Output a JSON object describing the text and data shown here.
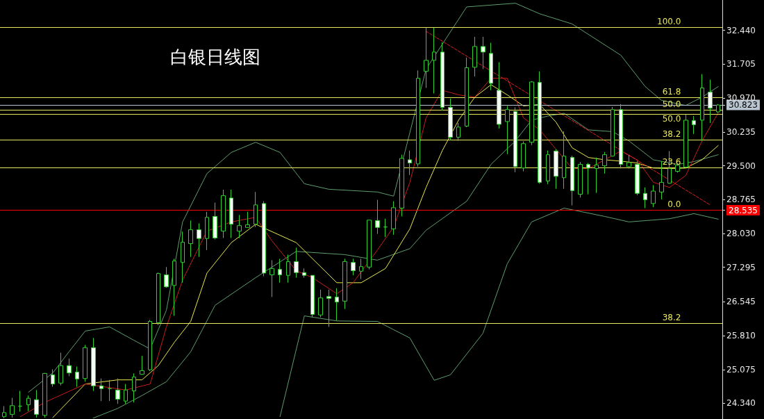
{
  "chart_data": {
    "type": "candlestick",
    "title": "白银日线图",
    "categories": [
      null,
      null,
      null,
      null,
      null,
      null,
      null,
      null,
      null,
      null,
      null,
      null,
      null,
      null,
      null,
      null,
      null,
      null,
      null,
      null,
      null,
      null,
      null,
      null,
      null,
      null,
      null,
      null,
      null,
      null,
      null,
      null,
      null,
      null,
      null,
      null,
      null,
      null,
      null,
      null,
      null,
      null,
      null,
      null,
      null,
      null,
      null,
      null,
      null,
      null,
      null,
      null,
      null,
      null,
      null,
      null,
      null,
      null,
      null,
      null,
      null,
      null,
      null,
      null,
      null,
      null,
      null,
      null,
      null,
      null,
      null,
      null,
      null,
      null,
      null,
      null,
      null,
      null,
      null,
      null,
      null,
      null,
      null,
      null,
      null,
      null,
      null,
      null,
      null
    ],
    "color": "#2fd02f",
    "ohlc": [
      [
        24.05,
        24.28,
        24.02,
        24.14
      ],
      [
        24.1,
        24.46,
        24.03,
        24.29
      ],
      [
        24.28,
        24.61,
        24.16,
        24.28
      ],
      [
        24.31,
        24.51,
        24.17,
        24.45
      ],
      [
        24.42,
        24.63,
        24.03,
        24.1
      ],
      [
        24.08,
        25.0,
        24.03,
        24.99
      ],
      [
        24.96,
        25.08,
        24.7,
        24.76
      ],
      [
        24.78,
        25.44,
        24.73,
        25.16
      ],
      [
        25.16,
        25.31,
        24.93,
        25.0
      ],
      [
        25.02,
        25.14,
        24.7,
        24.87
      ],
      [
        24.88,
        25.61,
        24.81,
        25.55
      ],
      [
        25.55,
        25.76,
        24.61,
        24.72
      ],
      [
        24.72,
        24.88,
        24.39,
        24.66
      ],
      [
        24.66,
        24.85,
        24.39,
        24.66
      ],
      [
        24.63,
        24.88,
        24.33,
        24.43
      ],
      [
        24.39,
        24.76,
        24.33,
        24.63
      ],
      [
        24.61,
        24.99,
        24.36,
        24.91
      ],
      [
        24.97,
        25.37,
        24.96,
        25.05
      ],
      [
        25.07,
        26.15,
        25.04,
        26.12
      ],
      [
        26.09,
        27.18,
        26.04,
        27.16
      ],
      [
        27.13,
        27.3,
        26.85,
        26.87
      ],
      [
        26.9,
        27.48,
        26.24,
        27.43
      ],
      [
        27.4,
        28.07,
        26.96,
        27.84
      ],
      [
        27.81,
        28.31,
        27.52,
        28.11
      ],
      [
        28.11,
        28.25,
        27.52,
        27.92
      ],
      [
        27.92,
        28.5,
        27.67,
        28.38
      ],
      [
        28.4,
        28.7,
        27.9,
        27.93
      ],
      [
        28.08,
        28.98,
        27.93,
        28.85
      ],
      [
        28.8,
        28.98,
        27.93,
        28.23
      ],
      [
        28.08,
        28.43,
        27.93,
        28.2
      ],
      [
        28.16,
        28.5,
        28.15,
        28.22
      ],
      [
        28.23,
        28.93,
        28.17,
        28.65
      ],
      [
        28.68,
        28.73,
        27.1,
        27.17
      ],
      [
        27.13,
        27.45,
        26.65,
        27.27
      ],
      [
        27.25,
        27.48,
        26.96,
        27.13
      ],
      [
        27.12,
        27.57,
        26.96,
        27.42
      ],
      [
        27.42,
        27.72,
        27.07,
        27.18
      ],
      [
        27.18,
        27.27,
        27.07,
        27.12
      ],
      [
        27.12,
        27.12,
        26.21,
        26.27
      ],
      [
        26.26,
        26.81,
        26.21,
        26.63
      ],
      [
        26.66,
        26.81,
        26.0,
        26.62
      ],
      [
        26.65,
        26.84,
        26.14,
        26.54
      ],
      [
        26.56,
        27.48,
        26.39,
        27.42
      ],
      [
        27.4,
        27.48,
        27.12,
        27.22
      ],
      [
        27.21,
        27.48,
        27.04,
        27.31
      ],
      [
        27.3,
        28.32,
        27.25,
        28.32
      ],
      [
        28.31,
        28.76,
        28.02,
        28.16
      ],
      [
        28.17,
        28.35,
        27.95,
        28.17
      ],
      [
        28.13,
        28.73,
        28.0,
        28.59
      ],
      [
        28.58,
        29.74,
        28.4,
        29.66
      ],
      [
        29.63,
        29.83,
        29.3,
        29.56
      ],
      [
        29.54,
        31.57,
        29.48,
        31.4
      ],
      [
        31.55,
        32.5,
        31.19,
        31.79
      ],
      [
        31.79,
        32.5,
        31.07,
        31.97
      ],
      [
        31.97,
        32.18,
        30.7,
        30.77
      ],
      [
        30.77,
        30.96,
        30.06,
        30.12
      ],
      [
        30.12,
        30.43,
        30.04,
        30.34
      ],
      [
        30.36,
        31.85,
        30.34,
        31.63
      ],
      [
        31.64,
        32.3,
        31.44,
        32.09
      ],
      [
        32.09,
        32.3,
        31.6,
        31.97
      ],
      [
        31.94,
        32.17,
        31.14,
        31.29
      ],
      [
        31.14,
        31.75,
        30.31,
        30.4
      ],
      [
        30.46,
        30.8,
        29.75,
        30.72
      ],
      [
        30.68,
        30.77,
        29.36,
        29.48
      ],
      [
        29.45,
        30.03,
        29.38,
        29.98
      ],
      [
        30.01,
        31.34,
        29.95,
        31.32
      ],
      [
        31.31,
        31.55,
        29.11,
        29.14
      ],
      [
        29.17,
        29.83,
        29.1,
        29.74
      ],
      [
        29.82,
        29.86,
        29.0,
        29.27
      ],
      [
        29.24,
        30.25,
        29.0,
        29.71
      ],
      [
        29.68,
        29.72,
        28.64,
        28.96
      ],
      [
        28.88,
        29.58,
        28.81,
        29.53
      ],
      [
        29.53,
        29.56,
        28.88,
        29.45
      ],
      [
        29.44,
        29.68,
        28.91,
        29.52
      ],
      [
        29.5,
        29.8,
        29.33,
        29.74
      ],
      [
        29.71,
        30.78,
        29.7,
        30.72
      ],
      [
        30.72,
        30.84,
        29.44,
        29.53
      ],
      [
        29.48,
        29.74,
        29.44,
        29.57
      ],
      [
        29.53,
        29.6,
        28.86,
        28.9
      ],
      [
        28.9,
        29.03,
        28.58,
        28.76
      ],
      [
        28.68,
        29.08,
        28.6,
        28.95
      ],
      [
        28.93,
        29.6,
        28.77,
        29.14
      ],
      [
        29.12,
        29.82,
        29.11,
        29.44
      ],
      [
        29.38,
        29.55,
        29.35,
        29.51
      ],
      [
        29.47,
        30.61,
        29.45,
        30.49
      ],
      [
        30.48,
        30.58,
        30.19,
        30.39
      ],
      [
        30.49,
        31.49,
        30.04,
        31.19
      ],
      [
        31.1,
        31.37,
        30.43,
        30.75
      ],
      [
        30.67,
        30.84,
        30.65,
        30.82
      ]
    ],
    "series": [
      {
        "type": "line",
        "color": "#5e9e6e",
        "values": [
          null,
          null,
          null,
          24.58,
          null,
          null,
          25.0,
          null,
          25.46,
          null,
          25.91,
          null,
          null,
          26.0,
          null,
          null,
          25.71,
          null,
          25.52,
          null,
          26.36,
          null,
          28.28,
          null,
          null,
          29.33,
          null,
          null,
          29.79,
          null,
          null,
          30.01,
          null,
          null,
          29.79,
          null,
          null,
          29.11,
          null,
          null,
          28.99,
          null,
          null,
          null,
          null,
          null,
          28.93,
          null,
          28.84,
          null,
          null,
          null,
          31.6,
          null,
          null,
          null,
          null,
          32.95,
          null,
          null,
          null,
          null,
          null,
          33.03,
          null,
          null,
          32.8,
          null,
          null,
          null,
          32.58,
          null,
          null,
          null,
          null,
          null,
          31.9,
          null,
          null,
          31.22,
          null,
          30.92,
          null,
          null,
          30.81,
          null,
          30.99,
          null,
          31.22
        ]
      },
      {
        "type": "line",
        "color": "#5e9e6e",
        "values": [
          null,
          null,
          null,
          null,
          null,
          null,
          null,
          null,
          null,
          null,
          null,
          24.02,
          null,
          null,
          24.23,
          null,
          null,
          24.51,
          null,
          null,
          24.81,
          null,
          null,
          25.46,
          null,
          null,
          26.47,
          null,
          null,
          null,
          null,
          27.07,
          null,
          null,
          null,
          null,
          27.64,
          null,
          null,
          null,
          null,
          null,
          27.57,
          null,
          null,
          null,
          27.45,
          null,
          null,
          null,
          27.7,
          null,
          28.1,
          null,
          null,
          null,
          null,
          28.73,
          null,
          null,
          29.53,
          null,
          null,
          30.04,
          null,
          30.49,
          null,
          30.58,
          null,
          30.64,
          null,
          null,
          30.28,
          null,
          null,
          30.24,
          null,
          30.04,
          null,
          null,
          29.63,
          null,
          null,
          29.53,
          null,
          29.59,
          null,
          null,
          29.74
        ]
      },
      {
        "type": "line",
        "color": "#5e9e6e",
        "values": [
          null,
          null,
          null,
          null,
          null,
          null,
          null,
          null,
          null,
          null,
          null,
          null,
          null,
          null,
          null,
          null,
          null,
          null,
          null,
          null,
          null,
          null,
          null,
          null,
          null,
          null,
          null,
          null,
          null,
          null,
          null,
          null,
          null,
          null,
          24.05,
          null,
          null,
          26.24,
          null,
          null,
          null,
          26.13,
          null,
          null,
          null,
          null,
          26.12,
          null,
          null,
          null,
          25.76,
          null,
          null,
          24.84,
          null,
          24.96,
          null,
          null,
          null,
          25.86,
          null,
          null,
          27.37,
          null,
          null,
          28.28,
          null,
          null,
          null,
          28.58,
          null,
          null,
          null,
          null,
          28.4,
          null,
          null,
          28.28,
          null,
          null,
          null,
          null,
          28.35,
          null,
          null,
          28.46,
          null,
          null,
          28.34
        ]
      },
      {
        "type": "line",
        "color": "#e8e84a",
        "values": [
          null,
          null,
          null,
          null,
          null,
          null,
          24.03,
          null,
          null,
          null,
          24.76,
          null,
          null,
          null,
          24.85,
          null,
          null,
          24.85,
          null,
          25.16,
          null,
          25.67,
          null,
          26.12,
          null,
          27.17,
          null,
          null,
          27.83,
          null,
          null,
          28.23,
          null,
          null,
          null,
          null,
          27.83,
          null,
          null,
          null,
          null,
          26.96,
          null,
          null,
          26.96,
          null,
          null,
          27.27,
          null,
          null,
          28.13,
          null,
          29.03,
          null,
          29.83,
          null,
          30.49,
          null,
          30.99,
          null,
          31.26,
          null,
          31.04,
          null,
          30.8,
          null,
          30.83,
          null,
          30.45,
          null,
          29.89,
          null,
          29.68,
          null,
          29.63,
          null,
          29.6,
          null,
          29.56,
          null,
          29.45,
          null,
          29.44,
          null,
          29.45,
          null,
          29.63,
          null,
          29.94
        ]
      },
      {
        "type": "line",
        "color": "#c81c1c",
        "values": [
          null,
          null,
          24.05,
          null,
          null,
          24.36,
          null,
          null,
          null,
          null,
          24.76,
          null,
          null,
          null,
          null,
          24.63,
          null,
          null,
          24.76,
          null,
          26.0,
          null,
          27.02,
          null,
          null,
          28.08,
          null,
          null,
          28.28,
          null,
          null,
          28.38,
          null,
          27.87,
          null,
          null,
          27.22,
          null,
          27.07,
          null,
          null,
          26.72,
          null,
          26.96,
          null,
          null,
          27.67,
          null,
          28.17,
          null,
          29.14,
          null,
          30.54,
          null,
          31.14,
          null,
          31.04,
          null,
          30.99,
          null,
          31.4,
          null,
          31.4,
          null,
          30.54,
          null,
          30.28,
          null,
          29.86,
          null,
          29.44,
          null,
          29.44,
          null,
          29.63,
          null,
          29.82,
          null,
          29.63,
          null,
          29.14,
          null,
          29.03,
          null,
          29.29,
          null,
          30.04,
          null,
          30.65
        ]
      },
      {
        "type": "line",
        "color": "#e02020",
        "line_style": "dashed",
        "values": [
          null,
          null,
          null,
          null,
          null,
          null,
          null,
          null,
          null,
          null,
          null,
          null,
          null,
          null,
          null,
          null,
          null,
          null,
          null,
          null,
          null,
          null,
          null,
          null,
          null,
          null,
          null,
          null,
          null,
          null,
          null,
          null,
          null,
          null,
          null,
          null,
          null,
          null,
          null,
          null,
          null,
          null,
          null,
          null,
          null,
          null,
          null,
          null,
          null,
          null,
          null,
          null,
          32.42,
          null,
          null,
          null,
          null,
          null,
          null,
          null,
          null,
          null,
          null,
          null,
          null,
          null,
          null,
          null,
          null,
          null,
          null,
          null,
          null,
          null,
          null,
          null,
          null,
          null,
          null,
          null,
          null,
          null,
          null,
          null,
          null,
          null,
          null,
          28.65,
          null
        ]
      }
    ],
    "marker": "none",
    "line_style": "solid",
    "ylim": [
      24.0,
      33.1
    ],
    "yticks": [
      {
        "value": 24.34,
        "label": "24.340"
      },
      {
        "value": 25.075,
        "label": "25.075"
      },
      {
        "value": 25.81,
        "label": "25.810"
      },
      {
        "value": 26.545,
        "label": "26.545"
      },
      {
        "value": 27.295,
        "label": "27.295"
      },
      {
        "value": 28.03,
        "label": "28.030"
      },
      {
        "value": 28.535,
        "label": "28.535"
      },
      {
        "value": 28.765,
        "label": "28.765"
      },
      {
        "value": 29.5,
        "label": "29.500"
      },
      {
        "value": 30.235,
        "label": "30.235"
      },
      {
        "value": 30.823,
        "label": "30.823"
      },
      {
        "value": 30.97,
        "label": "30.970"
      },
      {
        "value": 31.705,
        "label": "31.705"
      },
      {
        "value": 32.44,
        "label": "32.440"
      }
    ],
    "tick_labels": "y",
    "ref_lines": [
      {
        "axis": "y",
        "value": 32.515,
        "color": "#e8e85a"
      },
      {
        "axis": "y",
        "value": 30.99,
        "color": "#e8e85a"
      },
      {
        "axis": "y",
        "value": 30.72,
        "color": "#e8e85a"
      },
      {
        "axis": "y",
        "value": 30.63,
        "color": "#e8e85a"
      },
      {
        "axis": "y",
        "value": 30.06,
        "color": "#e8e85a"
      },
      {
        "axis": "y",
        "value": 29.47,
        "color": "#e8e85a"
      },
      {
        "axis": "y",
        "value": 26.09,
        "color": "#e8e85a"
      },
      {
        "axis": "y",
        "value": 30.823,
        "color": "#b8c4d0"
      },
      {
        "axis": "y",
        "value": 28.535,
        "color": "#ff0000"
      }
    ],
    "annotations": [
      {
        "text": "100.0",
        "y": 32.515
      },
      {
        "text": "61.8",
        "y": 30.99
      },
      {
        "text": "50.0",
        "y": 30.72
      },
      {
        "text": "50.0",
        "y": 30.63
      },
      {
        "text": "38.2",
        "y": 30.06
      },
      {
        "text": "23.6",
        "y": 29.47
      },
      {
        "text": "0.0",
        "y": 28.535
      },
      {
        "text": "38.2",
        "y": 26.09
      }
    ]
  }
}
